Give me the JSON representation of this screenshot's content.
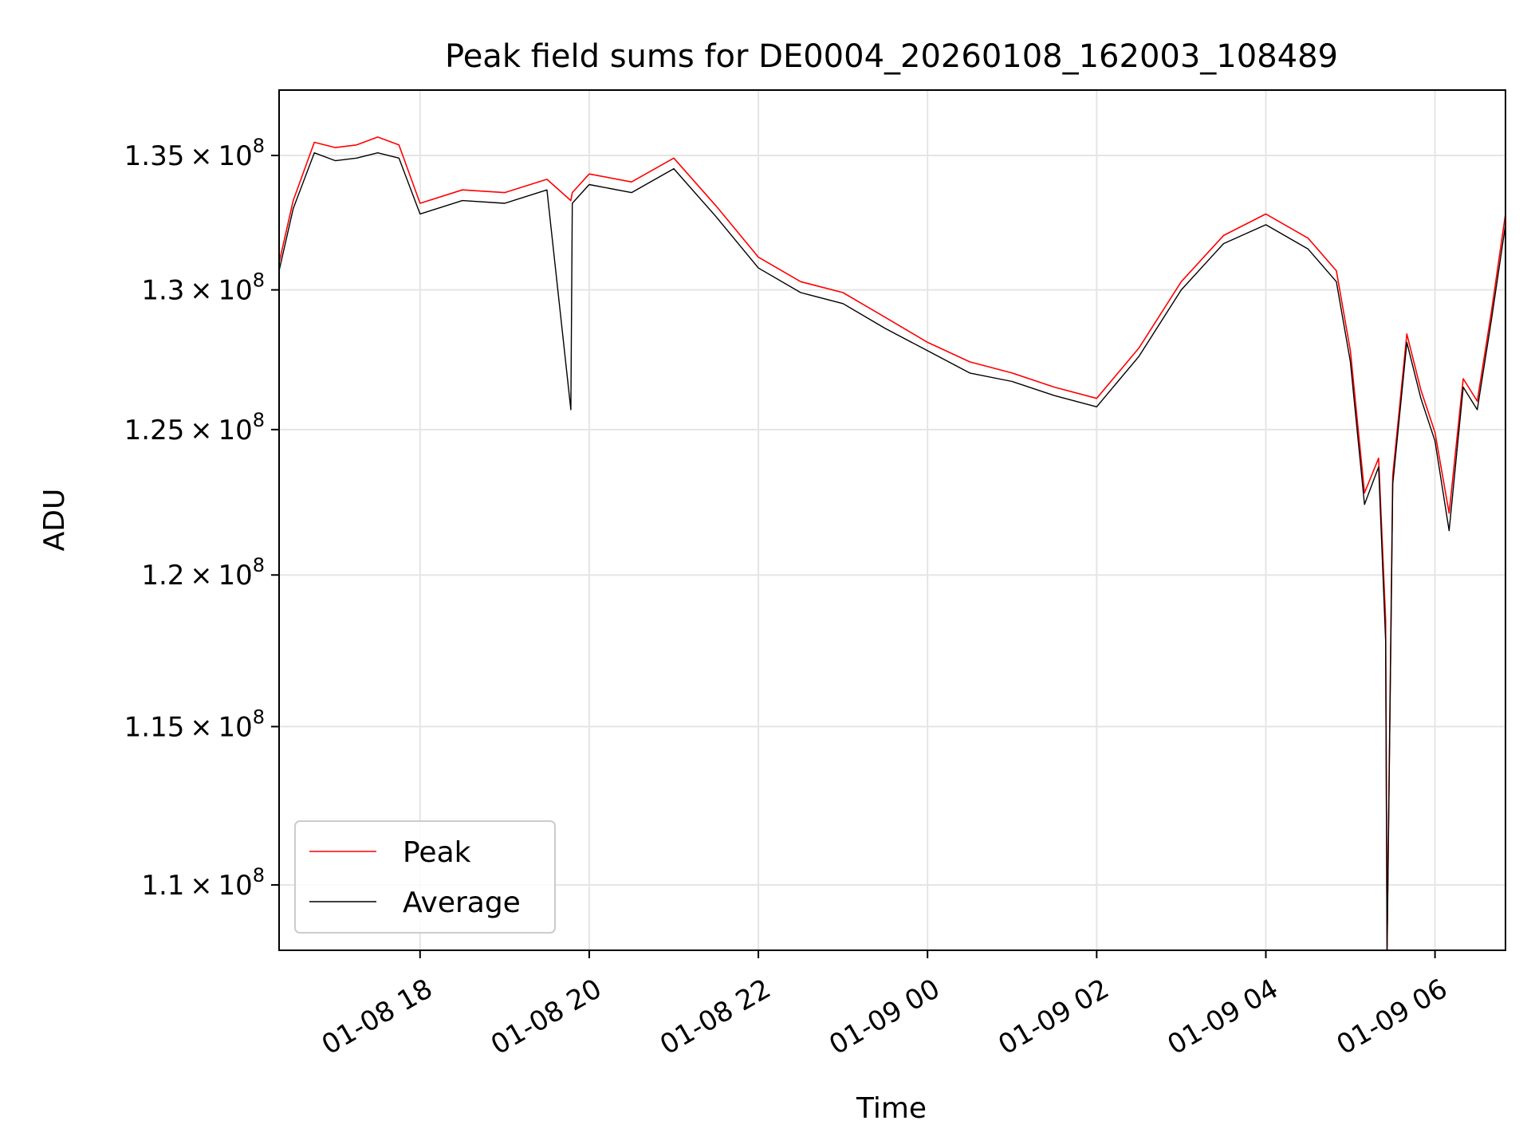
{
  "chart_data": {
    "type": "line",
    "title": "Peak field sums for DE0004_20260108_162003_108489",
    "xlabel": "Time",
    "ylabel": "ADU",
    "yscale": "log",
    "ylim": [
      108000000,
      137500000
    ],
    "xlim": [
      "2026-01-08 16:20",
      "2026-01-09 06:50"
    ],
    "grid": true,
    "legend_position": "lower-left",
    "x_ticks": [
      {
        "t": "2026-01-08 18:00",
        "label": "01-08 18"
      },
      {
        "t": "2026-01-08 20:00",
        "label": "01-08 20"
      },
      {
        "t": "2026-01-08 22:00",
        "label": "01-08 22"
      },
      {
        "t": "2026-01-09 00:00",
        "label": "01-09 00"
      },
      {
        "t": "2026-01-09 02:00",
        "label": "01-09 02"
      },
      {
        "t": "2026-01-09 04:00",
        "label": "01-09 04"
      },
      {
        "t": "2026-01-09 06:00",
        "label": "01-09 06"
      }
    ],
    "y_ticks": [
      {
        "v": 110000000,
        "mantissa": "1.1"
      },
      {
        "v": 115000000,
        "mantissa": "1.15"
      },
      {
        "v": 120000000,
        "mantissa": "1.2"
      },
      {
        "v": 125000000,
        "mantissa": "1.25"
      },
      {
        "v": 130000000,
        "mantissa": "1.3"
      },
      {
        "v": 135000000,
        "mantissa": "1.35"
      }
    ],
    "y_tick_base": "10",
    "y_tick_exponent": "8",
    "series": [
      {
        "name": "Peak",
        "color": "#ff0000",
        "x": [
          "2026-01-08 16:20",
          "2026-01-08 16:30",
          "2026-01-08 16:45",
          "2026-01-08 17:00",
          "2026-01-08 17:15",
          "2026-01-08 17:30",
          "2026-01-08 17:45",
          "2026-01-08 18:00",
          "2026-01-08 18:30",
          "2026-01-08 19:00",
          "2026-01-08 19:30",
          "2026-01-08 19:47",
          "2026-01-08 19:48",
          "2026-01-08 20:00",
          "2026-01-08 20:30",
          "2026-01-08 21:00",
          "2026-01-08 21:30",
          "2026-01-08 22:00",
          "2026-01-08 22:30",
          "2026-01-08 23:00",
          "2026-01-08 23:30",
          "2026-01-09 00:00",
          "2026-01-09 00:30",
          "2026-01-09 01:00",
          "2026-01-09 01:30",
          "2026-01-09 02:00",
          "2026-01-09 02:30",
          "2026-01-09 03:00",
          "2026-01-09 03:30",
          "2026-01-09 04:00",
          "2026-01-09 04:30",
          "2026-01-09 04:50",
          "2026-01-09 05:00",
          "2026-01-09 05:10",
          "2026-01-09 05:20",
          "2026-01-09 05:25",
          "2026-01-09 05:26",
          "2026-01-09 05:30",
          "2026-01-09 05:40",
          "2026-01-09 05:50",
          "2026-01-09 06:00",
          "2026-01-09 06:10",
          "2026-01-09 06:20",
          "2026-01-09 06:30",
          "2026-01-09 06:40",
          "2026-01-09 06:50"
        ],
        "y": [
          131000000,
          133300000,
          135500000,
          135300000,
          135400000,
          135700000,
          135400000,
          133200000,
          133700000,
          133600000,
          134100000,
          133300000,
          133600000,
          134300000,
          134000000,
          134900000,
          133100000,
          131200000,
          130300000,
          129900000,
          129000000,
          128100000,
          127400000,
          127000000,
          126500000,
          126100000,
          127900000,
          130300000,
          132000000,
          132800000,
          131900000,
          130700000,
          127800000,
          122800000,
          124000000,
          118500000,
          108000000,
          123400000,
          128400000,
          126400000,
          124900000,
          122100000,
          126800000,
          126000000,
          129200000,
          132800000
        ]
      },
      {
        "name": "Average",
        "color": "#000000",
        "x": [
          "2026-01-08 16:20",
          "2026-01-08 16:30",
          "2026-01-08 16:45",
          "2026-01-08 17:00",
          "2026-01-08 17:15",
          "2026-01-08 17:30",
          "2026-01-08 17:45",
          "2026-01-08 18:00",
          "2026-01-08 18:30",
          "2026-01-08 19:00",
          "2026-01-08 19:30",
          "2026-01-08 19:47",
          "2026-01-08 19:48",
          "2026-01-08 20:00",
          "2026-01-08 20:30",
          "2026-01-08 21:00",
          "2026-01-08 21:30",
          "2026-01-08 22:00",
          "2026-01-08 22:30",
          "2026-01-08 23:00",
          "2026-01-08 23:30",
          "2026-01-09 00:00",
          "2026-01-09 00:30",
          "2026-01-09 01:00",
          "2026-01-09 01:30",
          "2026-01-09 02:00",
          "2026-01-09 02:30",
          "2026-01-09 03:00",
          "2026-01-09 03:30",
          "2026-01-09 04:00",
          "2026-01-09 04:30",
          "2026-01-09 04:50",
          "2026-01-09 05:00",
          "2026-01-09 05:10",
          "2026-01-09 05:20",
          "2026-01-09 05:25",
          "2026-01-09 05:26",
          "2026-01-09 05:30",
          "2026-01-09 05:40",
          "2026-01-09 05:50",
          "2026-01-09 06:00",
          "2026-01-09 06:10",
          "2026-01-09 06:20",
          "2026-01-09 06:30",
          "2026-01-09 06:40",
          "2026-01-09 06:50"
        ],
        "y": [
          130700000,
          133000000,
          135100000,
          134800000,
          134900000,
          135100000,
          134900000,
          132800000,
          133300000,
          133200000,
          133700000,
          125700000,
          133200000,
          133900000,
          133600000,
          134500000,
          132700000,
          130800000,
          129900000,
          129500000,
          128600000,
          127800000,
          127000000,
          126700000,
          126200000,
          125800000,
          127600000,
          130000000,
          131700000,
          132400000,
          131500000,
          130300000,
          127400000,
          122400000,
          123700000,
          117800000,
          108000000,
          123100000,
          128100000,
          126100000,
          124600000,
          121500000,
          126500000,
          125700000,
          128900000,
          132400000
        ]
      }
    ]
  }
}
